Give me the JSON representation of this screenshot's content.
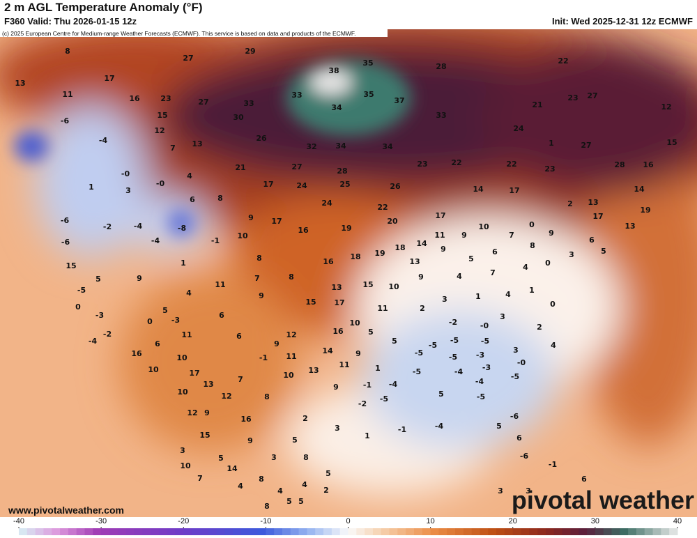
{
  "header": {
    "title": "2 m AGL Temperature Anomaly (°F)",
    "valid": "F360 Valid: Thu 2026-01-15 12z",
    "init": "Init: Wed 2025-12-31 12z ECMWF",
    "credit": "(c) 2025 European Centre for Medium-range Weather Forecasts (ECMWF). This service is based on data and products of the ECMWF."
  },
  "footer": {
    "url": "www.pivotalweather.com",
    "watermark": "pivotal weather"
  },
  "colorbar": {
    "lim": [
      -40,
      40
    ],
    "ticks": [
      -40,
      -30,
      -20,
      -10,
      0,
      10,
      20,
      30,
      40
    ]
  },
  "map_labels": [
    8,
    27,
    29,
    38,
    35,
    28,
    22,
    13,
    11,
    17,
    16,
    23,
    27,
    33,
    33,
    34,
    35,
    37,
    33,
    21,
    23,
    27,
    12,
    -6,
    15,
    12,
    30,
    26,
    32,
    34,
    34,
    24,
    1,
    27,
    15,
    -4,
    7,
    13,
    "-0",
    "-0",
    4,
    21,
    27,
    28,
    23,
    22,
    22,
    23,
    28,
    16,
    1,
    3,
    6,
    8,
    17,
    24,
    25,
    26,
    14,
    17,
    2,
    13,
    14,
    -6,
    -2,
    -4,
    -8,
    9,
    17,
    16,
    24,
    19,
    22,
    20,
    17,
    10,
    7,
    0,
    9,
    19,
    13,
    -6,
    -1,
    10,
    17,
    19,
    18,
    14,
    11,
    9,
    6,
    5,
    -4,
    15,
    9,
    1,
    8,
    16,
    18,
    13,
    9,
    5,
    6,
    8,
    4,
    0,
    3,
    5,
    -5,
    11,
    7,
    8,
    13,
    15,
    10,
    9,
    4,
    7,
    0,
    -3,
    5,
    4,
    9,
    15,
    17,
    11,
    2,
    3,
    1,
    4,
    1,
    0,
    0,
    -3,
    6,
    10,
    -2,
    "-0",
    3,
    2,
    -2,
    -4,
    6,
    11,
    6,
    9,
    12,
    16,
    5,
    5,
    -5,
    -5,
    -5,
    3,
    4,
    16,
    10,
    -1,
    11,
    14,
    9,
    -5,
    -5,
    -3,
    10,
    17,
    10,
    13,
    11,
    1,
    -5,
    -4,
    -3,
    "-0",
    13,
    7,
    9,
    -1,
    -4,
    -4,
    -5,
    10,
    12,
    8,
    -5,
    5,
    -5,
    12,
    9,
    16,
    2,
    -2,
    3,
    1,
    -1,
    -4,
    5,
    -6,
    15,
    9,
    5,
    3,
    5,
    3,
    8,
    6,
    -6,
    -1,
    10,
    14,
    8,
    4,
    5,
    7,
    4,
    4,
    5,
    2,
    5,
    8,
    3,
    3,
    6
  ]
}
